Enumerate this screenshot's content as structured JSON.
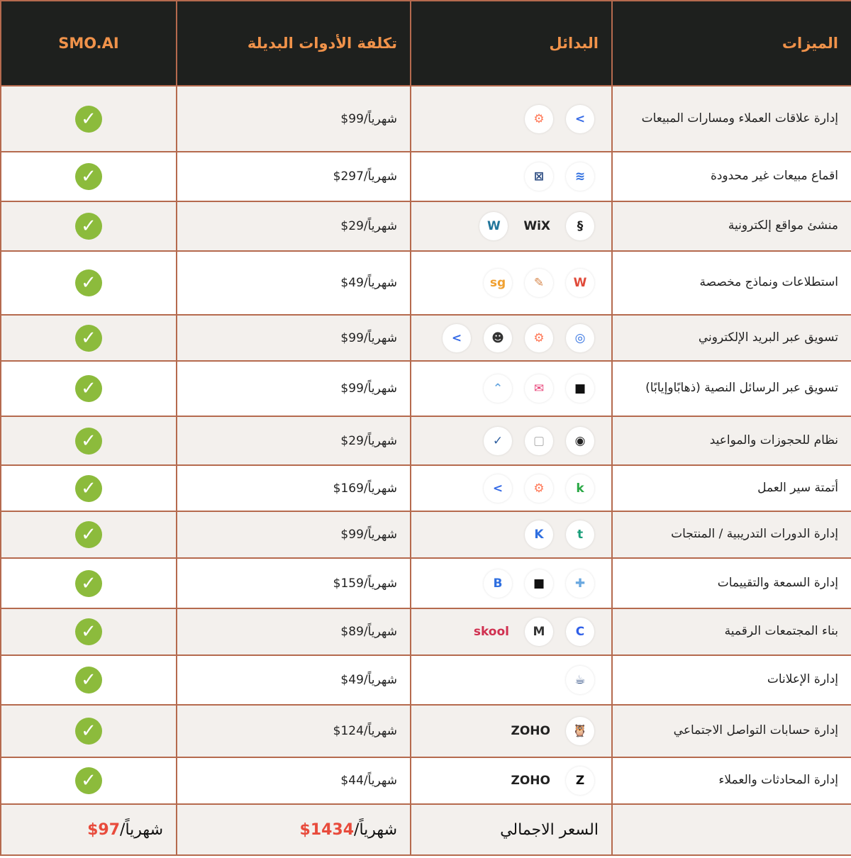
{
  "header": {
    "features": "الميزات",
    "alternatives": "البدائل",
    "cost": "تكلفة الأدوات البديلة",
    "smo": "SMO.AI"
  },
  "colors": {
    "header_bg": "#1e201e",
    "header_text": "#f0924a",
    "check": "#8cbb3c",
    "total_price": "#e84b3c",
    "border": "#b56a4e"
  },
  "rows": [
    {
      "feature": "إدارة علاقات العملاء ومسارات المبيعات",
      "cost": "شهرياً/99$",
      "logos": [
        {
          "icon": "activecampaign-icon",
          "g": ">",
          "c": "#356ae6"
        },
        {
          "icon": "hubspot-icon",
          "g": "⚙",
          "c": "#ff7a59"
        }
      ]
    },
    {
      "feature": "اقماع مبيعات غير محدودة",
      "cost": "شهرياً/297$",
      "logos": [
        {
          "icon": "layers-icon",
          "g": "≋",
          "c": "#2f6fe0"
        },
        {
          "icon": "funnel-builder-icon",
          "g": "⊠",
          "c": "#2a4a80"
        }
      ]
    },
    {
      "feature": "منشئ مواقع إلكترونية",
      "cost": "شهرياً/29$",
      "logos": [
        {
          "icon": "squarespace-icon",
          "g": "§",
          "c": "#222"
        },
        {
          "icon": "wix-icon",
          "g": "WiX",
          "c": "#222"
        },
        {
          "icon": "wordpress-icon",
          "g": "W",
          "c": "#21759b"
        }
      ]
    },
    {
      "feature": "استطلاعات ونماذج مخصصة",
      "cost": "شهرياً/49$",
      "logos": [
        {
          "icon": "w-form-icon",
          "g": "W",
          "c": "#e04a3a"
        },
        {
          "icon": "pen-icon",
          "g": "✎",
          "c": "#d88a50"
        },
        {
          "icon": "surveygizmo-icon",
          "g": "sg",
          "c": "#f0a030"
        }
      ]
    },
    {
      "feature": "تسويق عبر البريد الإلكتروني",
      "cost": "شهرياً/99$",
      "logos": [
        {
          "icon": "target-icon",
          "g": "◎",
          "c": "#2f6fe0"
        },
        {
          "icon": "hubspot-icon",
          "g": "⚙",
          "c": "#ff7a59"
        },
        {
          "icon": "mailchimp-icon",
          "g": "☻",
          "c": "#333"
        },
        {
          "icon": "activecampaign-icon",
          "g": ">",
          "c": "#356ae6"
        }
      ]
    },
    {
      "feature": "تسويق عبر الرسائل النصية (ذهابًاوإيابًا)",
      "cost": "شهرياً/99$",
      "logos": [
        {
          "icon": "podium-icon",
          "g": "■",
          "c": "#111"
        },
        {
          "icon": "envelope-icon",
          "g": "✉",
          "c": "#e8457a"
        },
        {
          "icon": "chevrons-up-icon",
          "g": "⌃",
          "c": "#6aa8e0"
        }
      ]
    },
    {
      "feature": "نظام للحجوزات والمواعيد",
      "cost": "شهرياً/29$",
      "logos": [
        {
          "icon": "acuity-icon",
          "g": "◉",
          "c": "#222"
        },
        {
          "icon": "calendar-icon",
          "g": "▢",
          "c": "#aaa"
        },
        {
          "icon": "calendly-check-icon",
          "g": "✓",
          "c": "#2f5fa0"
        }
      ]
    },
    {
      "feature": "أتمتة سير العمل",
      "cost": "شهرياً/169$",
      "logos": [
        {
          "icon": "keap-icon",
          "g": "k",
          "c": "#2aa845"
        },
        {
          "icon": "hubspot-icon",
          "g": "⚙",
          "c": "#ff7a59"
        },
        {
          "icon": "activecampaign-icon",
          "g": ">",
          "c": "#356ae6"
        }
      ]
    },
    {
      "feature": "إدارة الدورات التدريبية / المنتجات",
      "cost": "شهرياً/99$",
      "logos": [
        {
          "icon": "teachable-icon",
          "g": "t",
          "c": "#1a9e7a"
        },
        {
          "icon": "kajabi-icon",
          "g": "K",
          "c": "#2f6fe0"
        }
      ]
    },
    {
      "feature": "إدارة السمعة والتقييمات",
      "cost": "شهرياً/159$",
      "logos": [
        {
          "icon": "puzzle-icon",
          "g": "✚",
          "c": "#6aa8e0"
        },
        {
          "icon": "podium-icon",
          "g": "■",
          "c": "#111"
        },
        {
          "icon": "birdeye-icon",
          "g": "B",
          "c": "#2f6fe0"
        }
      ]
    },
    {
      "feature": "بناء المجتمعات الرقمية",
      "cost": "شهرياً/89$",
      "logos": [
        {
          "icon": "circle-icon",
          "g": "C",
          "c": "#2f5fe8"
        },
        {
          "icon": "mighty-networks-icon",
          "g": "M",
          "c": "#333"
        },
        {
          "icon": "skool-icon",
          "g": "skool",
          "c": "#d03050"
        }
      ]
    },
    {
      "feature": "إدارة الإعلانات",
      "cost": "شهرياً/49$",
      "logos": [
        {
          "icon": "adespresso-icon",
          "g": "☕",
          "c": "#2a4a80"
        }
      ]
    },
    {
      "feature": "إدارة حسابات التواصل الاجتماعي",
      "cost": "شهرياً/124$",
      "logos": [
        {
          "icon": "hootsuite-icon",
          "g": "🦉",
          "c": "#e0403a"
        },
        {
          "icon": "zoho-icon",
          "g": "ZOHO",
          "c": "#222"
        }
      ]
    },
    {
      "feature": "إدارة المحادثات والعملاء",
      "cost": "شهرياً/44$",
      "logos": [
        {
          "icon": "zendesk-icon",
          "g": "Z",
          "c": "#111"
        },
        {
          "icon": "zoho-icon",
          "g": "ZOHO",
          "c": "#222"
        }
      ]
    }
  ],
  "total": {
    "label": "السعر الاجمالي",
    "alt_amount": "1434$",
    "alt_suffix": "شهرياً/",
    "smo_amount": "97$",
    "smo_suffix": "شهرياً/"
  }
}
